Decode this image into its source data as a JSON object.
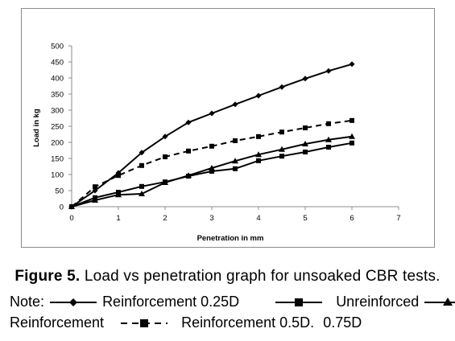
{
  "chart_data": {
    "type": "line",
    "xlabel": "Penetration in mm",
    "ylabel": "Load in kg",
    "xlim": [
      0,
      7
    ],
    "ylim": [
      0,
      500
    ],
    "xticks": [
      0,
      1,
      2,
      3,
      4,
      5,
      6,
      7
    ],
    "yticks": [
      0,
      50,
      100,
      150,
      200,
      250,
      300,
      350,
      400,
      450,
      500
    ],
    "grid": false,
    "x": [
      0,
      0.5,
      1,
      1.5,
      2,
      2.5,
      3,
      3.5,
      4,
      4.5,
      5,
      5.5,
      6
    ],
    "series": [
      {
        "name": "Reinforcement 0.25D",
        "marker": "diamond",
        "style": "solid",
        "values": [
          0,
          50,
          105,
          168,
          218,
          262,
          290,
          318,
          345,
          372,
          398,
          422,
          443
        ]
      },
      {
        "name": "Unreinforced",
        "marker": "square",
        "style": "solid",
        "values": [
          0,
          28,
          45,
          63,
          77,
          95,
          110,
          118,
          143,
          157,
          170,
          185,
          198
        ]
      },
      {
        "name": "Reinforcement 0.75D",
        "marker": "triangle",
        "style": "solid",
        "values": [
          0,
          20,
          37,
          40,
          75,
          97,
          120,
          142,
          162,
          178,
          195,
          208,
          218
        ]
      },
      {
        "name": "Reinforcement 0.5D",
        "marker": "square",
        "style": "dashed",
        "values": [
          0,
          62,
          97,
          128,
          155,
          173,
          188,
          205,
          218,
          232,
          245,
          258,
          268
        ]
      }
    ]
  },
  "caption": {
    "figure_label": "Figure 5.",
    "text": "Load vs penetration graph for unsoaked CBR tests."
  },
  "note": {
    "label": "Note:",
    "item1": "Reinforcement 0.25D",
    "item2": "Unreinforced",
    "item3": "Reinforcement",
    "item4": "Reinforcement 0.5D.",
    "item5": "0.75D"
  },
  "colors": {
    "line": "#000000",
    "frame": "#8c8c8c",
    "axis": "#8c8c8c"
  }
}
